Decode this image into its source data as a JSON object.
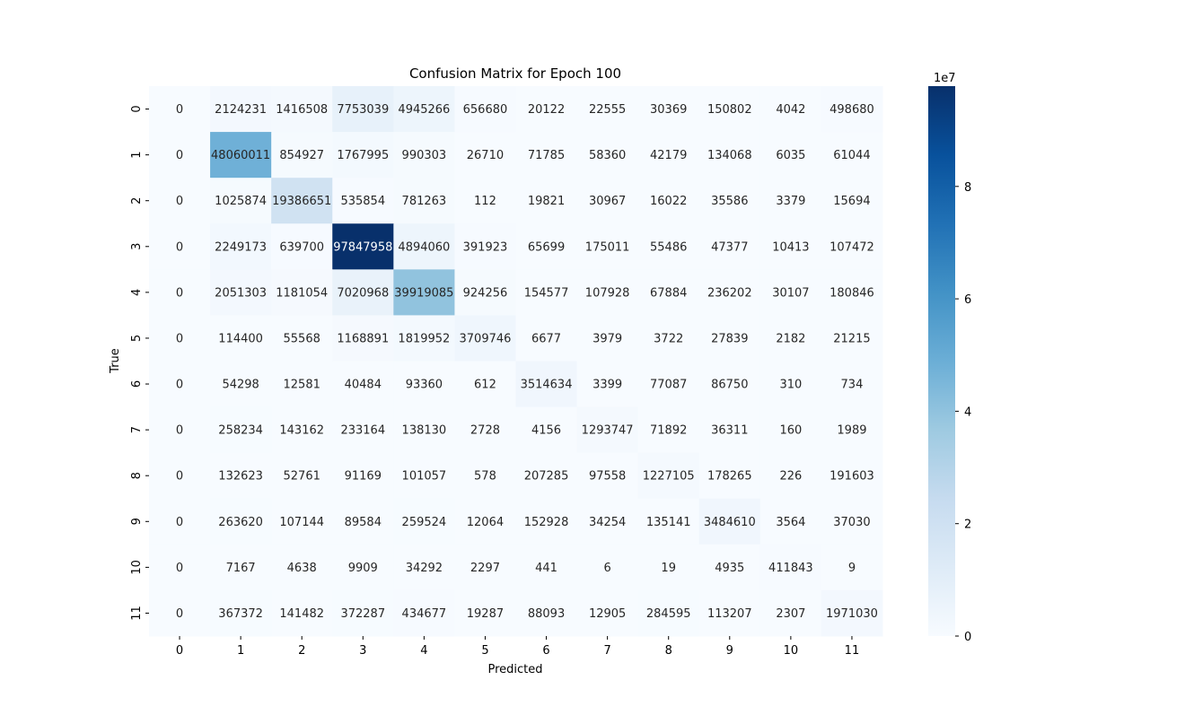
{
  "chart_data": {
    "type": "heatmap",
    "title": "Confusion Matrix for Epoch 100",
    "xlabel": "Predicted",
    "ylabel": "True",
    "x_categories": [
      "0",
      "1",
      "2",
      "3",
      "4",
      "5",
      "6",
      "7",
      "8",
      "9",
      "10",
      "11"
    ],
    "y_categories": [
      "0",
      "1",
      "2",
      "3",
      "4",
      "5",
      "6",
      "7",
      "8",
      "9",
      "10",
      "11"
    ],
    "values": [
      [
        0,
        2124231,
        1416508,
        7753039,
        4945266,
        656680,
        20122,
        22555,
        30369,
        150802,
        4042,
        498680
      ],
      [
        0,
        48060011,
        854927,
        1767995,
        990303,
        26710,
        71785,
        58360,
        42179,
        134068,
        6035,
        61044
      ],
      [
        0,
        1025874,
        19386651,
        535854,
        781263,
        112,
        19821,
        30967,
        16022,
        35586,
        3379,
        15694
      ],
      [
        0,
        2249173,
        639700,
        97847958,
        4894060,
        391923,
        65699,
        175011,
        55486,
        47377,
        10413,
        107472
      ],
      [
        0,
        2051303,
        1181054,
        7020968,
        39919085,
        924256,
        154577,
        107928,
        67884,
        236202,
        30107,
        180846
      ],
      [
        0,
        114400,
        55568,
        1168891,
        1819952,
        3709746,
        6677,
        3979,
        3722,
        27839,
        2182,
        21215
      ],
      [
        0,
        54298,
        12581,
        40484,
        93360,
        612,
        3514634,
        3399,
        77087,
        86750,
        310,
        734
      ],
      [
        0,
        258234,
        143162,
        233164,
        138130,
        2728,
        4156,
        1293747,
        71892,
        36311,
        160,
        1989
      ],
      [
        0,
        132623,
        52761,
        91169,
        101057,
        578,
        207285,
        97558,
        1227105,
        178265,
        226,
        191603
      ],
      [
        0,
        263620,
        107144,
        89584,
        259524,
        12064,
        152928,
        34254,
        135141,
        3484610,
        3564,
        37030
      ],
      [
        0,
        7167,
        4638,
        9909,
        34292,
        2297,
        441,
        6,
        19,
        4935,
        411843,
        9
      ],
      [
        0,
        367372,
        141482,
        372287,
        434677,
        19287,
        88093,
        12905,
        284595,
        113207,
        2307,
        1971030
      ]
    ],
    "colormap": "Blues",
    "color_range": [
      0,
      97847958
    ],
    "colorbar": {
      "ticks": [
        0,
        2,
        4,
        6,
        8
      ],
      "tick_labels": [
        "0",
        "2",
        "4",
        "6",
        "8"
      ],
      "multiplier": "1e7"
    },
    "grid": false
  }
}
